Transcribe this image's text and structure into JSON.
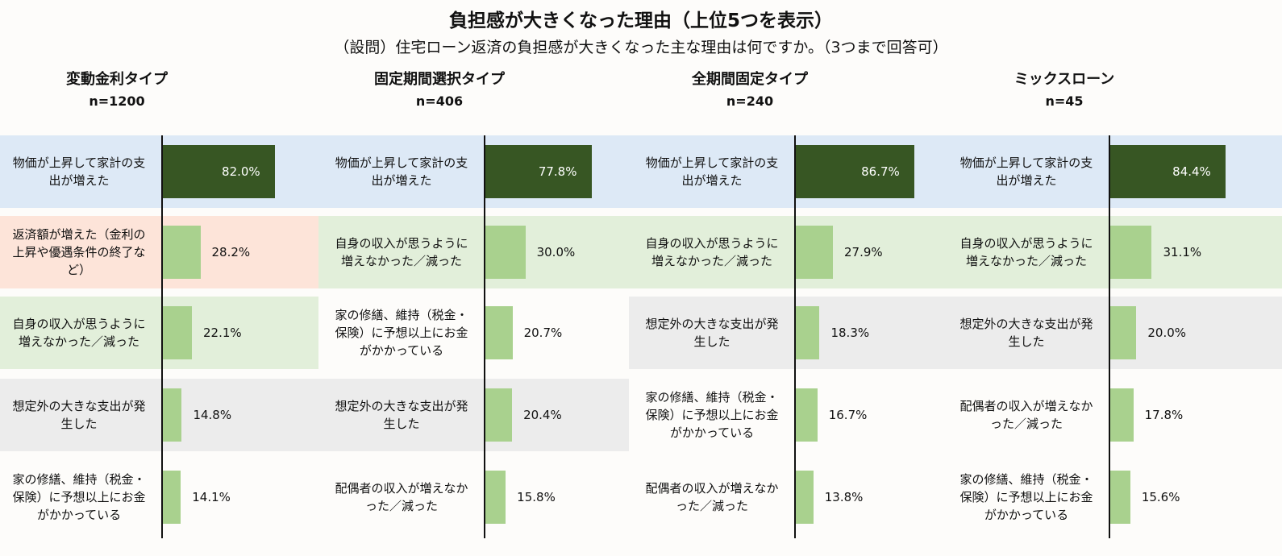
{
  "title": "負担感が大きくなった理由（上位5つを表示）",
  "subtitle": "（設問）住宅ローン返済の負担感が大きくなった主な理由は何ですか。（3つまで回答可）",
  "colors": {
    "dark_bar": "#375623",
    "light_bar": "#a9d18e",
    "bg_price": "#dde9f6",
    "bg_repay": "#fde4d9",
    "bg_income": "#e2efda",
    "bg_unexpected": "#ececec",
    "bg_other": "#fdfcfa"
  },
  "chart_data": {
    "type": "bar",
    "orientation": "horizontal",
    "title": "負担感が大きくなった理由（上位5つを表示）",
    "unit": "%",
    "xlim": [
      0,
      100
    ],
    "panels": [
      {
        "name": "変動金利タイプ",
        "n": "n=1200",
        "items": [
          {
            "label": "物価が上昇して家計の支出が増えた",
            "value": 82.0,
            "value_label": "82.0%",
            "cat": "price"
          },
          {
            "label": "返済額が増えた（金利の上昇や優遇条件の終了など）",
            "value": 28.2,
            "value_label": "28.2%",
            "cat": "repay"
          },
          {
            "label": "自身の収入が思うように増えなかった／減った",
            "value": 22.1,
            "value_label": "22.1%",
            "cat": "income"
          },
          {
            "label": "想定外の大きな支出が発生した",
            "value": 14.8,
            "value_label": "14.8%",
            "cat": "unexpected"
          },
          {
            "label": "家の修繕、維持（税金・保険）に予想以上にお金がかかっている",
            "value": 14.1,
            "value_label": "14.1%",
            "cat": "other"
          }
        ]
      },
      {
        "name": "固定期間選択タイプ",
        "n": "n=406",
        "items": [
          {
            "label": "物価が上昇して家計の支出が増えた",
            "value": 77.8,
            "value_label": "77.8%",
            "cat": "price"
          },
          {
            "label": "自身の収入が思うように増えなかった／減った",
            "value": 30.0,
            "value_label": "30.0%",
            "cat": "income"
          },
          {
            "label": "家の修繕、維持（税金・保険）に予想以上にお金がかかっている",
            "value": 20.7,
            "value_label": "20.7%",
            "cat": "other"
          },
          {
            "label": "想定外の大きな支出が発生した",
            "value": 20.4,
            "value_label": "20.4%",
            "cat": "unexpected"
          },
          {
            "label": "配偶者の収入が増えなかった／減った",
            "value": 15.8,
            "value_label": "15.8%",
            "cat": "other"
          }
        ]
      },
      {
        "name": "全期間固定タイプ",
        "n": "n=240",
        "items": [
          {
            "label": "物価が上昇して家計の支出が増えた",
            "value": 86.7,
            "value_label": "86.7%",
            "cat": "price"
          },
          {
            "label": "自身の収入が思うように増えなかった／減った",
            "value": 27.9,
            "value_label": "27.9%",
            "cat": "income"
          },
          {
            "label": "想定外の大きな支出が発生した",
            "value": 18.3,
            "value_label": "18.3%",
            "cat": "unexpected"
          },
          {
            "label": "家の修繕、維持（税金・保険）に予想以上にお金がかかっている",
            "value": 16.7,
            "value_label": "16.7%",
            "cat": "other"
          },
          {
            "label": "配偶者の収入が増えなかった／減った",
            "value": 13.8,
            "value_label": "13.8%",
            "cat": "other"
          }
        ]
      },
      {
        "name": "ミックスローン",
        "n": "n=45",
        "items": [
          {
            "label": "物価が上昇して家計の支出が増えた",
            "value": 84.4,
            "value_label": "84.4%",
            "cat": "price"
          },
          {
            "label": "自身の収入が思うように増えなかった／減った",
            "value": 31.1,
            "value_label": "31.1%",
            "cat": "income"
          },
          {
            "label": "想定外の大きな支出が発生した",
            "value": 20.0,
            "value_label": "20.0%",
            "cat": "unexpected"
          },
          {
            "label": "配偶者の収入が増えなかった／減った",
            "value": 17.8,
            "value_label": "17.8%",
            "cat": "other"
          },
          {
            "label": "家の修繕、維持（税金・保険）に予想以上にお金がかかっている",
            "value": 15.6,
            "value_label": "15.6%",
            "cat": "other"
          }
        ]
      }
    ]
  }
}
